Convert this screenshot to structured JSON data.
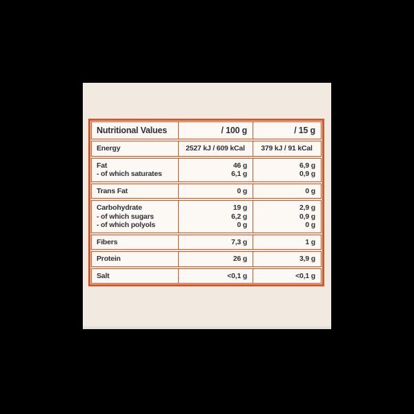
{
  "table": {
    "headers": [
      "Nutritional Values",
      "/ 100 g",
      "/ 15 g"
    ],
    "rows": [
      {
        "lines": [
          {
            "label": "Energy",
            "per100": "2527 kJ / 609 kCal",
            "per15": "379 kJ / 91 kCal"
          }
        ]
      },
      {
        "lines": [
          {
            "label": "Fat",
            "per100": "46 g",
            "per15": "6,9 g"
          },
          {
            "label": "- of which saturates",
            "per100": "6,1 g",
            "per15": "0,9 g"
          }
        ]
      },
      {
        "lines": [
          {
            "label": "Trans Fat",
            "per100": "0 g",
            "per15": "0 g"
          }
        ]
      },
      {
        "lines": [
          {
            "label": "Carbohydrate",
            "per100": "19 g",
            "per15": "2,9 g"
          },
          {
            "label": "- of which sugars",
            "per100": "6,2 g",
            "per15": "0,9 g"
          },
          {
            "label": "- of which polyols",
            "per100": "0 g",
            "per15": "0 g"
          }
        ]
      },
      {
        "lines": [
          {
            "label": "Fibers",
            "per100": "7,3 g",
            "per15": "1 g"
          }
        ]
      },
      {
        "lines": [
          {
            "label": "Protein",
            "per100": "26 g",
            "per15": "3,9 g"
          }
        ]
      },
      {
        "lines": [
          {
            "label": "Salt",
            "per100": "<0,1 g",
            "per15": "<0,1 g"
          }
        ]
      }
    ]
  },
  "colors": {
    "letterbox": "#000000",
    "photo_background": "#f2eae1",
    "table_border": "#e2511f",
    "cell_background": "#fcf9f4",
    "text": "#2e2f35",
    "photo_edge": "#e2dfda"
  }
}
